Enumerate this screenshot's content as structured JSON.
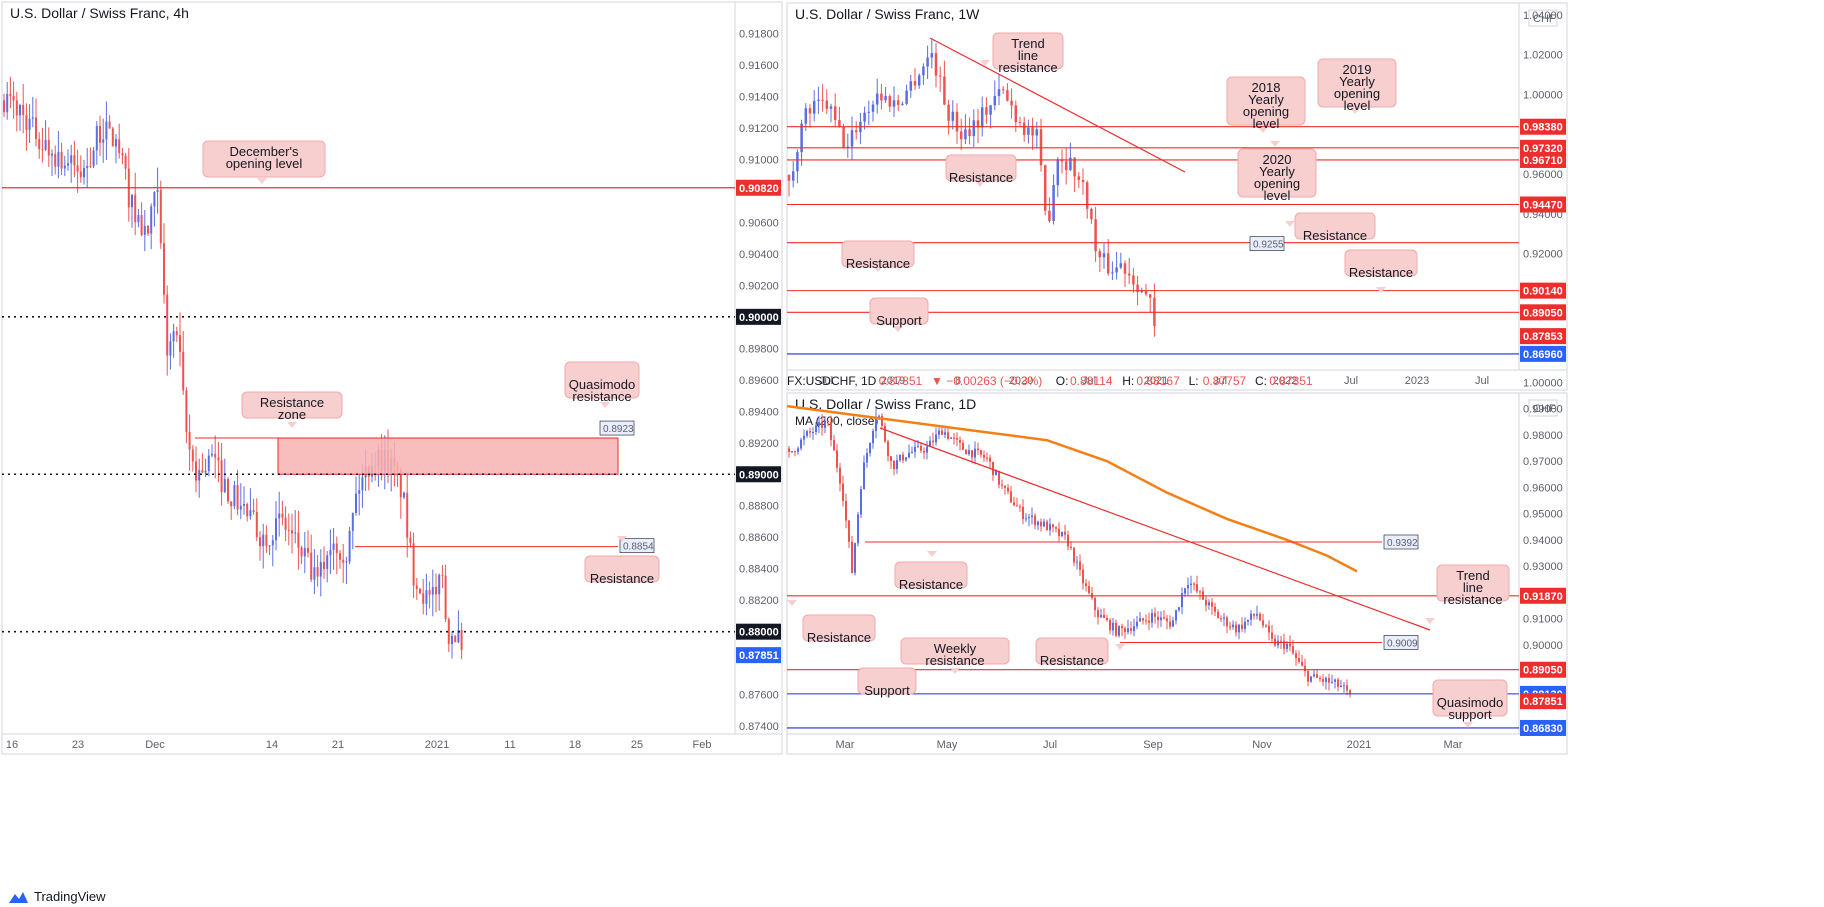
{
  "colors": {
    "up": "#5b6ee1",
    "down": "#ef5350",
    "level": "#ef2d2d",
    "support_blue": "#1e2fd8",
    "zone_fill": "#f7b2b2",
    "callout_fill": "#f8cfcf",
    "ma": "#f57f17",
    "current_blue": "#2962ff"
  },
  "footer": {
    "brand": "TradingView"
  },
  "chart_data": [
    {
      "id": "h4",
      "type": "candlestick",
      "title": "U.S. Dollar / Swiss Franc, 4h",
      "ylim": [
        0.8735,
        0.92
      ],
      "y_ticks": [
        "0.91800",
        "0.91600",
        "0.91400",
        "0.91200",
        "0.91000",
        "0.90800",
        "0.90600",
        "0.90400",
        "0.90200",
        "0.89800",
        "0.89600",
        "0.89400",
        "0.89200",
        "0.88800",
        "0.88600",
        "0.88400",
        "0.88200",
        "0.87600",
        "0.87400"
      ],
      "y_tick_values": [
        0.918,
        0.916,
        0.914,
        0.912,
        0.91,
        0.908,
        0.906,
        0.904,
        0.902,
        0.898,
        0.896,
        0.894,
        0.892,
        0.888,
        0.886,
        0.884,
        0.882,
        0.876,
        0.874
      ],
      "x_ticks": [
        "16",
        "23",
        "Dec",
        "14",
        "21",
        "2021",
        "11",
        "18",
        "25",
        "Feb"
      ],
      "path_points": [
        [
          0,
          0.914
        ],
        [
          20,
          0.913
        ],
        [
          40,
          0.911
        ],
        [
          60,
          0.91
        ],
        [
          80,
          0.909
        ],
        [
          100,
          0.912
        ],
        [
          115,
          0.911
        ],
        [
          130,
          0.907
        ],
        [
          145,
          0.905
        ],
        [
          155,
          0.908
        ],
        [
          165,
          0.898
        ],
        [
          175,
          0.899
        ],
        [
          185,
          0.892
        ],
        [
          195,
          0.89
        ],
        [
          210,
          0.891
        ],
        [
          225,
          0.889
        ],
        [
          240,
          0.888
        ],
        [
          260,
          0.886
        ],
        [
          280,
          0.887
        ],
        [
          300,
          0.885
        ],
        [
          315,
          0.883
        ],
        [
          330,
          0.886
        ],
        [
          345,
          0.885
        ],
        [
          355,
          0.889
        ],
        [
          370,
          0.891
        ],
        [
          385,
          0.891
        ],
        [
          400,
          0.889
        ],
        [
          410,
          0.884
        ],
        [
          425,
          0.882
        ],
        [
          435,
          0.882
        ],
        [
          438,
          0.885
        ],
        [
          445,
          0.88
        ],
        [
          455,
          0.88
        ],
        [
          462,
          0.8775
        ]
      ],
      "price_levels": [
        {
          "value": 0.9082,
          "label": "0.90820",
          "style": "solid",
          "tag": "red"
        },
        {
          "value": 0.9,
          "label": "0.90000",
          "style": "dotted",
          "tag": "black"
        },
        {
          "value": 0.89,
          "label": "0.89000",
          "style": "dotted",
          "tag": "black"
        },
        {
          "value": 0.88,
          "label": "0.88000",
          "style": "dotted",
          "tag": "black"
        },
        {
          "value": 0.87851,
          "label": "0.87851",
          "style": "none",
          "tag": "blue"
        }
      ],
      "segments": [
        {
          "value": 0.8854,
          "label": "0.8854"
        }
      ],
      "zone": {
        "top": 0.8923,
        "bottom": 0.89,
        "label": "0.8923"
      },
      "annotations": [
        "December's opening level",
        "Resistance zone",
        "Quasimodo resistance",
        "Resistance"
      ]
    },
    {
      "id": "w1",
      "type": "candlestick",
      "title": "U.S. Dollar / Swiss Franc, 1W",
      "currency": "CHF",
      "ylim": [
        0.8615,
        1.046
      ],
      "y_ticks": [
        "1.04000",
        "1.02000",
        "1.00000",
        "0.96000",
        "0.94000",
        "0.92000"
      ],
      "y_tick_values": [
        1.04,
        1.02,
        1.0,
        0.96,
        0.94,
        0.92
      ],
      "x_ticks": [
        "Jul",
        "2019",
        "8",
        "2020",
        "Jul",
        "2021",
        "Jul",
        "2022",
        "Jul",
        "2023",
        "Jul"
      ],
      "path_points": [
        [
          0,
          0.947
        ],
        [
          10,
          0.975
        ],
        [
          20,
          0.992
        ],
        [
          40,
          0.995
        ],
        [
          60,
          0.972
        ],
        [
          70,
          0.985
        ],
        [
          90,
          1.0
        ],
        [
          110,
          0.995
        ],
        [
          130,
          1.01
        ],
        [
          145,
          1.021
        ],
        [
          160,
          0.992
        ],
        [
          175,
          0.98
        ],
        [
          195,
          0.99
        ],
        [
          215,
          1.002
        ],
        [
          235,
          0.985
        ],
        [
          250,
          0.978
        ],
        [
          260,
          0.932
        ],
        [
          270,
          0.97
        ],
        [
          285,
          0.965
        ],
        [
          300,
          0.948
        ],
        [
          310,
          0.918
        ],
        [
          325,
          0.912
        ],
        [
          335,
          0.915
        ],
        [
          350,
          0.906
        ],
        [
          365,
          0.893
        ],
        [
          368,
          0.8785
        ]
      ],
      "price_levels": [
        {
          "value": 0.9838,
          "label": "0.98380",
          "style": "solid",
          "tag": "red"
        },
        {
          "value": 0.9732,
          "label": "0.97320",
          "style": "solid",
          "tag": "red"
        },
        {
          "value": 0.9671,
          "label": "0.96710",
          "style": "solid",
          "tag": "red"
        },
        {
          "value": 0.9447,
          "label": "0.94470",
          "style": "solid",
          "tag": "red"
        },
        {
          "value": 0.9255,
          "label": "0.9255",
          "style": "solid",
          "tag": "inline"
        },
        {
          "value": 0.9014,
          "label": "0.90140",
          "style": "solid",
          "tag": "red"
        },
        {
          "value": 0.8905,
          "label": "0.89050",
          "style": "solid",
          "tag": "red"
        },
        {
          "value": 0.87853,
          "label": "0.87853",
          "style": "none",
          "tag": "red"
        },
        {
          "value": 0.8696,
          "label": "0.86960",
          "style": "blue",
          "tag": "blue"
        }
      ],
      "annotations": [
        "Trend line resistance",
        "2018 Yearly opening level",
        "2019 Yearly opening level",
        "2020 Yearly opening level",
        "Resistance",
        "Resistance",
        "Resistance",
        "Resistance",
        "Support"
      ]
    },
    {
      "id": "d1",
      "type": "candlestick",
      "title": "U.S. Dollar / Swiss Franc, 1D",
      "currency": "CHF",
      "indicator": "MA (200, close)",
      "ylim": [
        0.866,
        0.996
      ],
      "y_ticks": [
        "1.00000",
        "0.99000",
        "0.98000",
        "0.97000",
        "0.96000",
        "0.95000",
        "0.94000",
        "0.93000",
        "0.92000",
        "0.91000",
        "0.90000"
      ],
      "y_tick_values": [
        1.0,
        0.99,
        0.98,
        0.97,
        0.96,
        0.95,
        0.94,
        0.93,
        0.92,
        0.91,
        0.9
      ],
      "x_ticks": [
        "Mar",
        "May",
        "Jul",
        "Sep",
        "Nov",
        "2021",
        "Mar"
      ],
      "path_points": [
        [
          0,
          0.972
        ],
        [
          20,
          0.98
        ],
        [
          40,
          0.985
        ],
        [
          55,
          0.96
        ],
        [
          65,
          0.928
        ],
        [
          75,
          0.965
        ],
        [
          90,
          0.99
        ],
        [
          105,
          0.968
        ],
        [
          120,
          0.973
        ],
        [
          140,
          0.975
        ],
        [
          155,
          0.982
        ],
        [
          175,
          0.975
        ],
        [
          200,
          0.971
        ],
        [
          215,
          0.96
        ],
        [
          235,
          0.95
        ],
        [
          260,
          0.945
        ],
        [
          280,
          0.94
        ],
        [
          295,
          0.925
        ],
        [
          310,
          0.912
        ],
        [
          330,
          0.905
        ],
        [
          350,
          0.908
        ],
        [
          365,
          0.911
        ],
        [
          385,
          0.908
        ],
        [
          400,
          0.925
        ],
        [
          415,
          0.918
        ],
        [
          430,
          0.911
        ],
        [
          450,
          0.906
        ],
        [
          470,
          0.912
        ],
        [
          485,
          0.901
        ],
        [
          500,
          0.9
        ],
        [
          520,
          0.888
        ],
        [
          540,
          0.886
        ],
        [
          555,
          0.884
        ],
        [
          565,
          0.879
        ]
      ],
      "ma_points": [
        [
          0,
          0.991
        ],
        [
          100,
          0.986
        ],
        [
          200,
          0.981
        ],
        [
          260,
          0.978
        ],
        [
          320,
          0.97
        ],
        [
          380,
          0.958
        ],
        [
          440,
          0.948
        ],
        [
          500,
          0.94
        ],
        [
          540,
          0.934
        ],
        [
          570,
          0.928
        ]
      ],
      "price_levels": [
        {
          "value": 0.9392,
          "label": "0.9392",
          "style": "segment",
          "tag": "inline"
        },
        {
          "value": 0.9187,
          "label": "0.91870",
          "style": "solid",
          "tag": "red"
        },
        {
          "value": 0.9009,
          "label": "0.9009",
          "style": "segment",
          "tag": "inline"
        },
        {
          "value": 0.8905,
          "label": "0.89050",
          "style": "solid",
          "tag": "red"
        },
        {
          "value": 0.8813,
          "label": "0.88130",
          "style": "blue",
          "tag": "blue"
        },
        {
          "value": 0.87851,
          "label": "0.87851",
          "style": "none",
          "tag": "red"
        },
        {
          "value": 0.8683,
          "label": "0.86830",
          "style": "blue",
          "tag": "blue"
        }
      ],
      "annotations": [
        "Trend line resistance",
        "Resistance",
        "Resistance",
        "Resistance",
        "Weekly resistance",
        "Support",
        "Quasimodo support"
      ]
    }
  ],
  "d1_info": {
    "symbol": "FX:USDCHF, 1D",
    "price": "0.87851",
    "change": "−0.00263 (−0.3%)",
    "o_label": "O:",
    "o": "0.88114",
    "h_label": "H:",
    "h": "0.88167",
    "l_label": "L:",
    "l": "0.87757",
    "c_label": "C:",
    "c": "0.87851"
  },
  "callouts": {
    "december": "December's opening level",
    "res_zone": "Resistance zone",
    "quasimodo_res": "Quasimodo resistance",
    "h4_resistance": "Resistance",
    "trend_w": "Trend line resistance",
    "y2018": "2018 Yearly opening level",
    "y2019": "2019 Yearly opening level",
    "y2020": "2020 Yearly opening level",
    "w_res1": "Resistance",
    "w_res2": "Resistance",
    "w_res3": "Resistance",
    "w_res4": "Resistance",
    "w_support": "Support",
    "trend_d": "Trend line resistance",
    "d_res1": "Resistance",
    "d_res2": "Resistance",
    "d_res3": "Resistance",
    "d_weekly_res": "Weekly resistance",
    "d_support": "Support",
    "d_quasimodo": "Quasimodo support"
  }
}
